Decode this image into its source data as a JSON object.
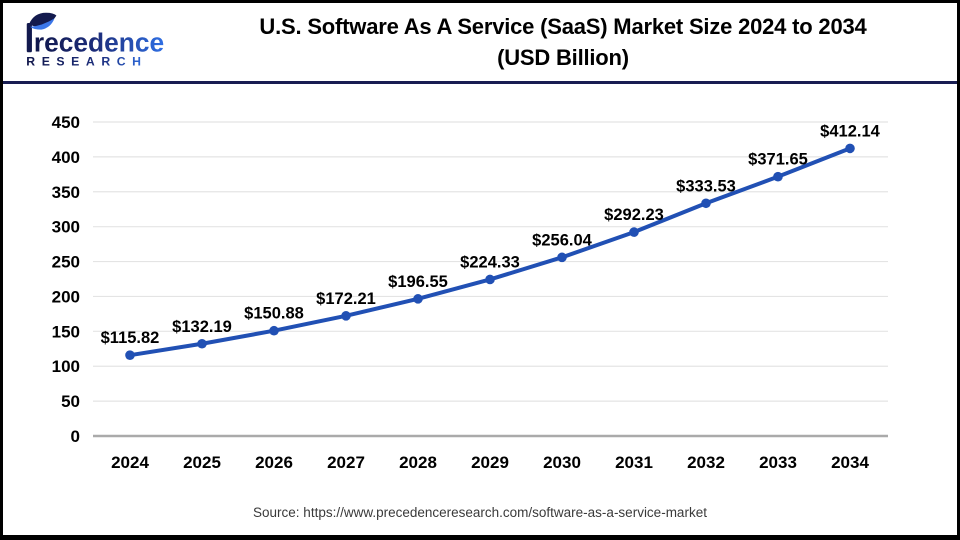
{
  "header": {
    "logo": {
      "name": "recedence",
      "subname": "RESEARCH"
    },
    "title_line1": "U.S. Software As A Service (SaaS) Market Size 2024 to 2034",
    "title_line2": "(USD Billion)"
  },
  "chart_data": {
    "type": "line",
    "title": "U.S. Software As A Service (SaaS) Market Size 2024 to 2034 (USD Billion)",
    "categories": [
      "2024",
      "2025",
      "2026",
      "2027",
      "2028",
      "2029",
      "2030",
      "2031",
      "2032",
      "2033",
      "2034"
    ],
    "values": [
      115.82,
      132.19,
      150.88,
      172.21,
      196.55,
      224.33,
      256.04,
      292.23,
      333.53,
      371.65,
      412.14
    ],
    "point_labels": [
      "$115.82",
      "$132.19",
      "$150.88",
      "$172.21",
      "$196.55",
      "$224.33",
      "$256.04",
      "$292.23",
      "$333.53",
      "$371.65",
      "$412.14"
    ],
    "xlabel": "",
    "ylabel": "",
    "ylim": [
      0,
      450
    ],
    "yticks": [
      0,
      50,
      100,
      150,
      200,
      250,
      300,
      350,
      400,
      450
    ],
    "grid": true,
    "legend": "none",
    "line_color": "#2150b4",
    "marker": "circle",
    "grid_color": "#e4e4e4",
    "axis_color": "#aaaaaa",
    "label_color": "#000000"
  },
  "footer": {
    "source": "Source: https://www.precedenceresearch.com/software-as-a-service-market"
  }
}
